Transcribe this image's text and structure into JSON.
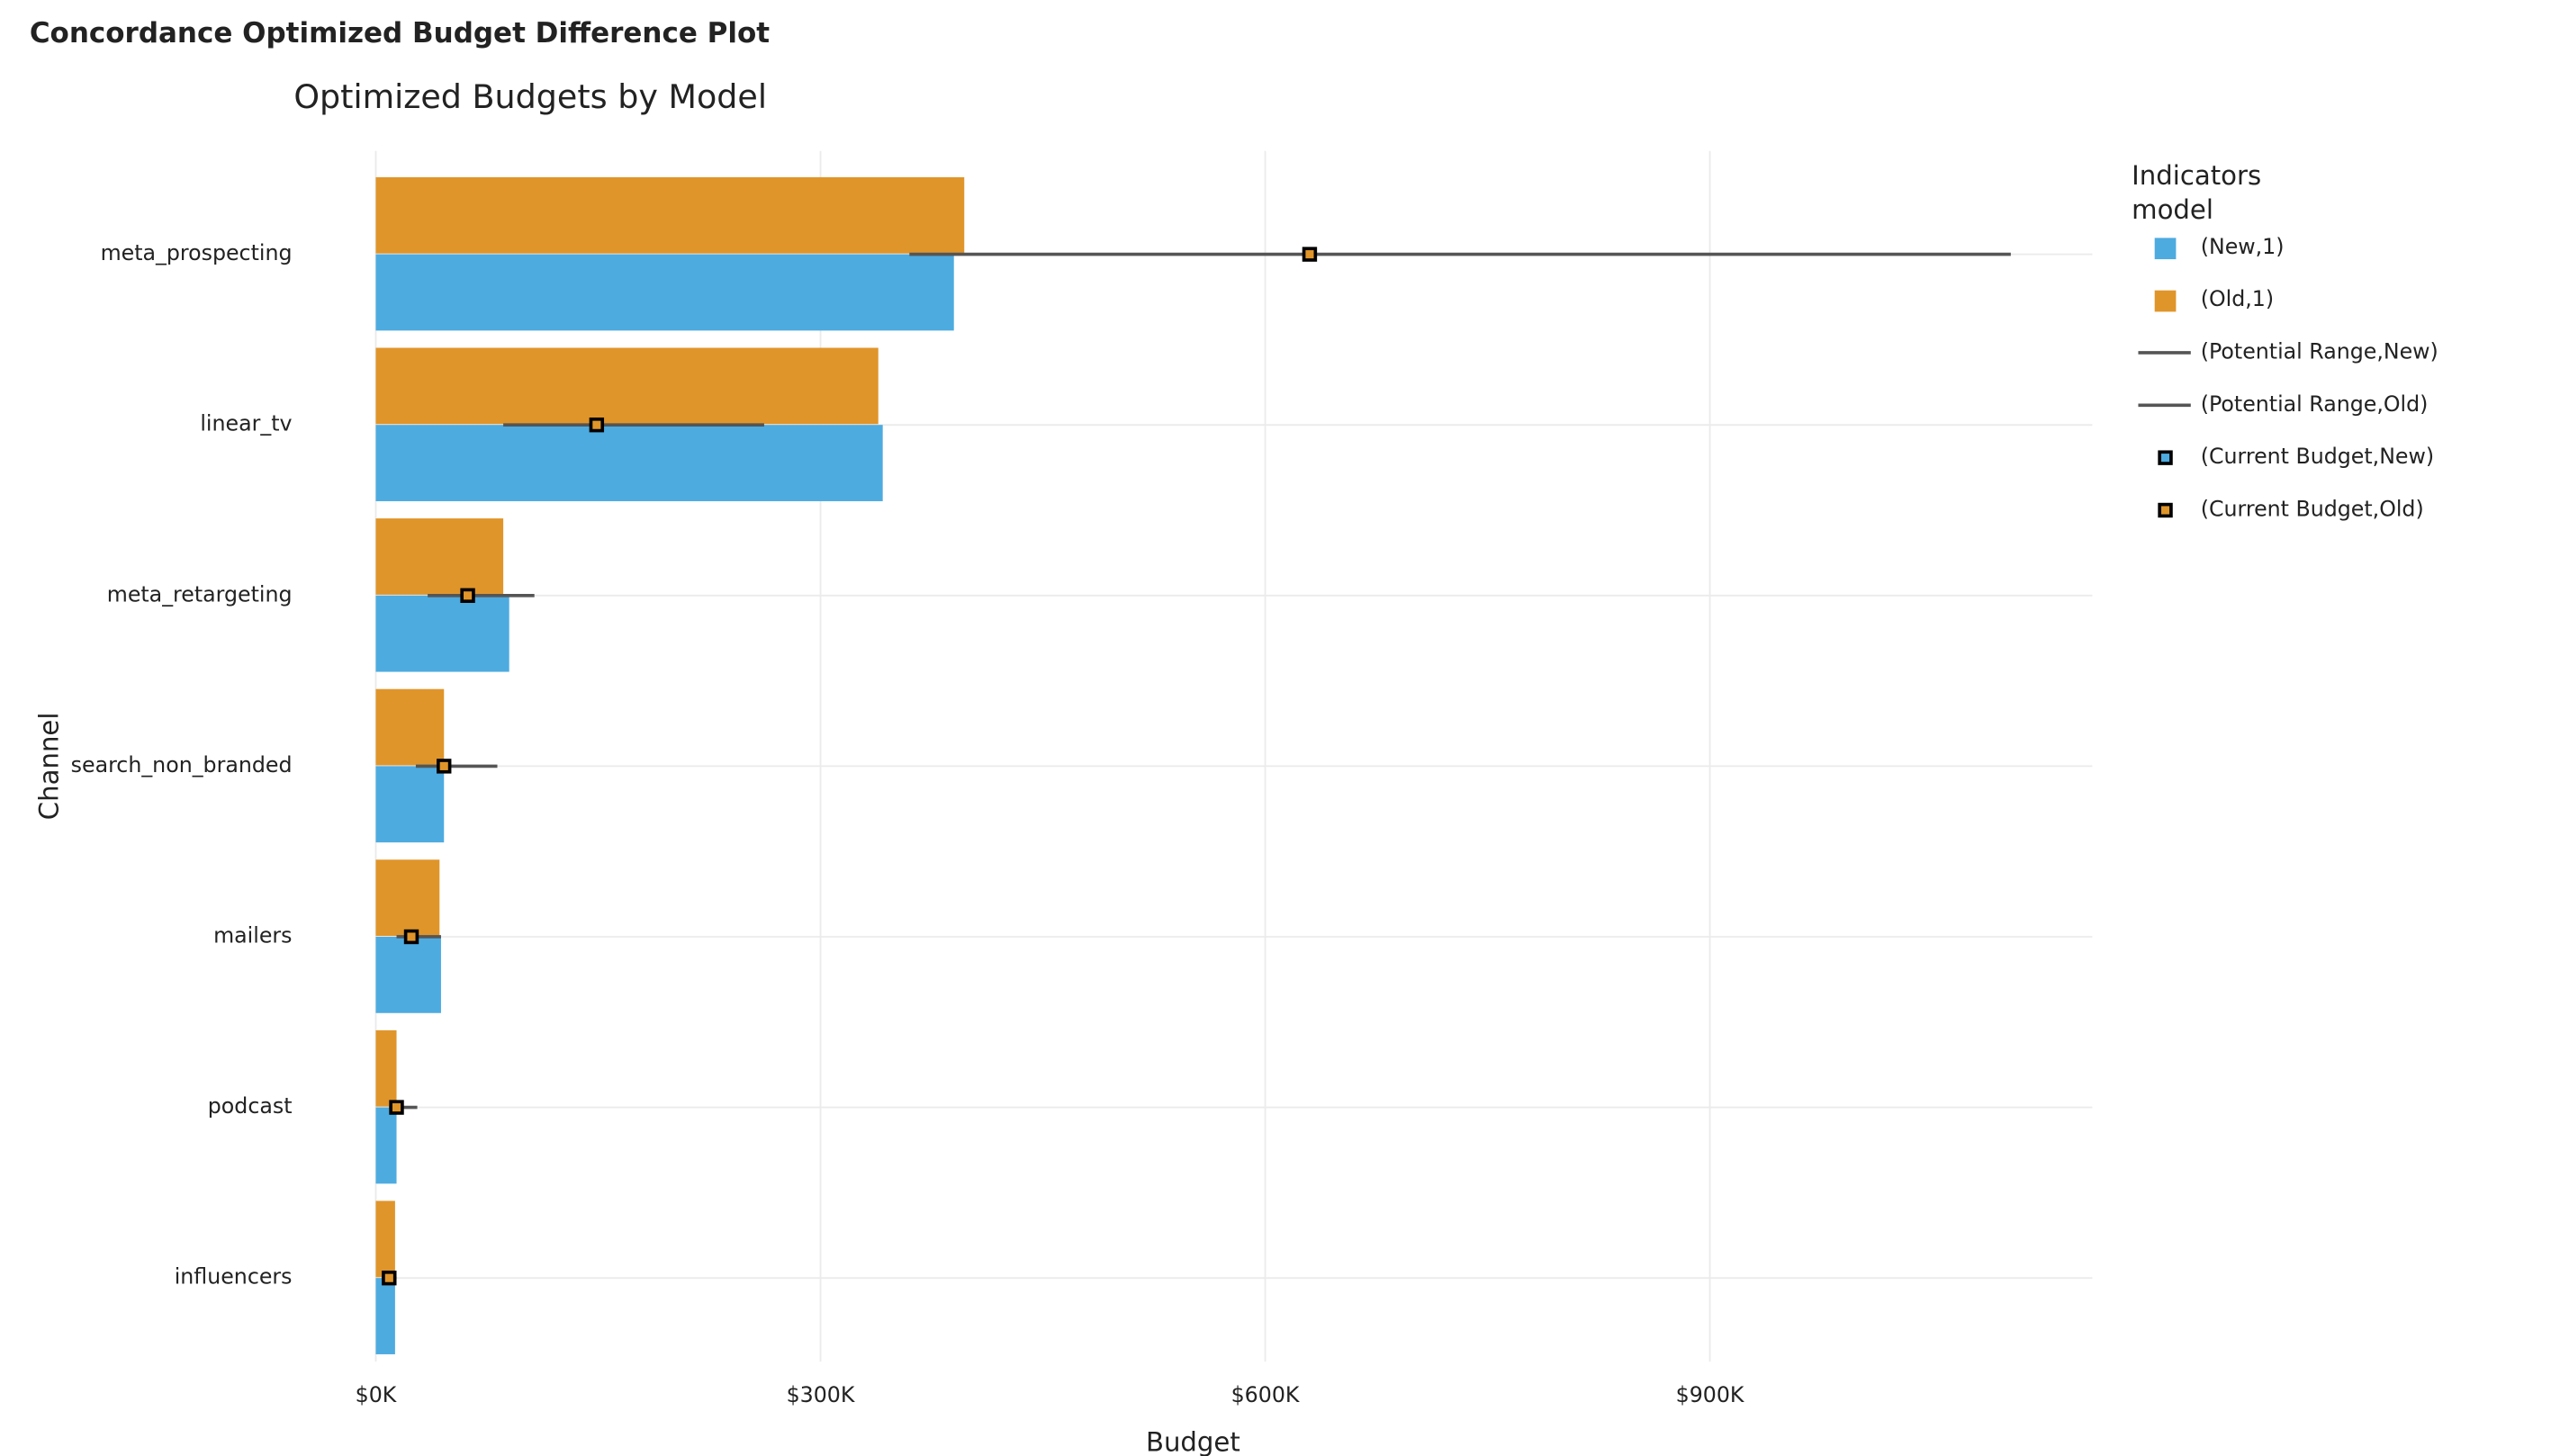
{
  "page_title": "Concordance Optimized Budget Difference Plot",
  "chart_data": {
    "type": "bar",
    "orientation": "horizontal",
    "title": "Optimized Budgets by Model",
    "x_label": "Budget",
    "y_label": "Channel",
    "legend_title": [
      "Indicators",
      "model"
    ],
    "legend_position": "right",
    "grid": true,
    "categories": [
      "meta_prospecting",
      "linear_tv",
      "meta_retargeting",
      "search_non_branded",
      "mailers",
      "podcast",
      "influencers"
    ],
    "series": [
      {
        "name": "(New,1)",
        "color": "#4dabe0",
        "values": [
          390000,
          342000,
          90000,
          46000,
          44000,
          14000,
          13000
        ]
      },
      {
        "name": "(Old,1)",
        "color": "#e0952a",
        "values": [
          397000,
          339000,
          86000,
          46000,
          43000,
          14000,
          13000
        ]
      }
    ],
    "ranges": [
      {
        "name": "(Potential Range,New)",
        "color": "#555555"
      },
      {
        "name": "(Potential Range,Old)",
        "color": "#555555",
        "low": [
          360000,
          86000,
          35000,
          27000,
          14000,
          9000,
          4000
        ],
        "high": [
          1103000,
          262000,
          107000,
          82000,
          44000,
          28000,
          14000
        ]
      }
    ],
    "markers": [
      {
        "name": "(Current Budget,New)",
        "color": "#4dabe0"
      },
      {
        "name": "(Current Budget,Old)",
        "color": "#e0952a",
        "values": [
          630000,
          149000,
          62000,
          46000,
          24000,
          14000,
          9000
        ]
      }
    ],
    "xlim": [
      0,
      1158000
    ],
    "xticks": [
      {
        "value": 0,
        "label": "$0K"
      },
      {
        "value": 300000,
        "label": "$300K"
      },
      {
        "value": 600000,
        "label": "$600K"
      },
      {
        "value": 900000,
        "label": "$900K"
      }
    ]
  }
}
